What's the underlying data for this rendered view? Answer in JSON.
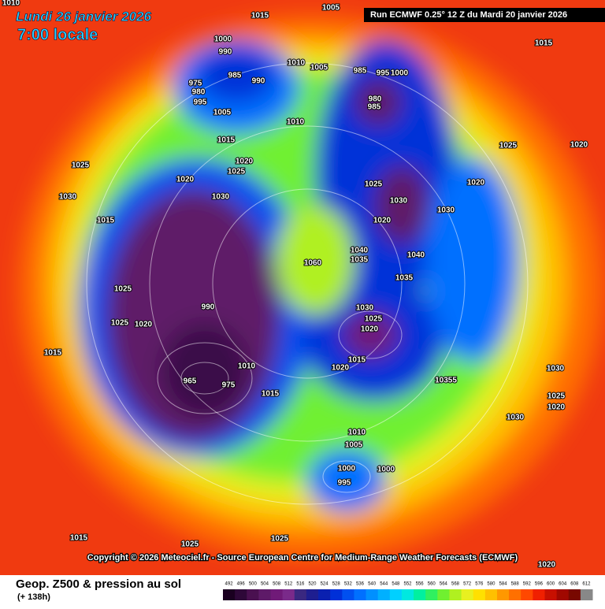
{
  "header": {
    "date": "Lundi 26 janvier 2026",
    "time": "7:00 locale",
    "run": "Run ECMWF 0.25° 12 Z du Mardi 20 janvier 2026"
  },
  "map": {
    "pressure_labels": [
      "1010",
      "1015",
      "1005",
      "1000",
      "990",
      "985",
      "975",
      "980",
      "995",
      "1005",
      "990",
      "1010",
      "1005",
      "985",
      "995",
      "1000",
      "980",
      "985",
      "1010",
      "1015",
      "1020",
      "1025",
      "1020",
      "1030",
      "1025",
      "1030",
      "1015",
      "1025",
      "1025",
      "1020",
      "1015",
      "990",
      "965",
      "975",
      "1010",
      "1015",
      "1060",
      "1040",
      "1035",
      "1030",
      "1025",
      "1020",
      "1040",
      "1035",
      "1030",
      "1020",
      "1025",
      "1030",
      "1025",
      "1020",
      "1015",
      "1020",
      "10355",
      "1030",
      "1010",
      "1005",
      "1000",
      "995",
      "1000",
      "1015",
      "1025",
      "1025",
      "1015",
      "1020",
      "1030",
      "1025",
      "1020",
      "1020"
    ]
  },
  "footer": {
    "copyright": "Copyright © 2026 Meteociel.fr - Source European Centre for Medium-Range Weather Forecasts (ECMWF)",
    "field": "Geop. Z500 & pression au sol",
    "lead": "(+ 138h)"
  },
  "colorbar": {
    "ticks": [
      492,
      496,
      500,
      504,
      508,
      512,
      516,
      520,
      524,
      528,
      532,
      536,
      540,
      544,
      548,
      552,
      556,
      560,
      564,
      568,
      572,
      576,
      580,
      584,
      588,
      592,
      596,
      600,
      604,
      608,
      612
    ],
    "colors": [
      "#1a0020",
      "#2e0838",
      "#4a1050",
      "#5e1a68",
      "#701a78",
      "#7a2a8a",
      "#3a2880",
      "#1e1e90",
      "#0a20b0",
      "#0030d8",
      "#0050f0",
      "#0070ff",
      "#0090ff",
      "#00b0ff",
      "#00d0ff",
      "#00e8e0",
      "#00f0a0",
      "#30f060",
      "#70f030",
      "#b0f020",
      "#e8f020",
      "#ffe000",
      "#ffc000",
      "#ff9800",
      "#ff7000",
      "#ff4800",
      "#f02000",
      "#c81000",
      "#a00800",
      "#780800",
      "#888888"
    ]
  }
}
